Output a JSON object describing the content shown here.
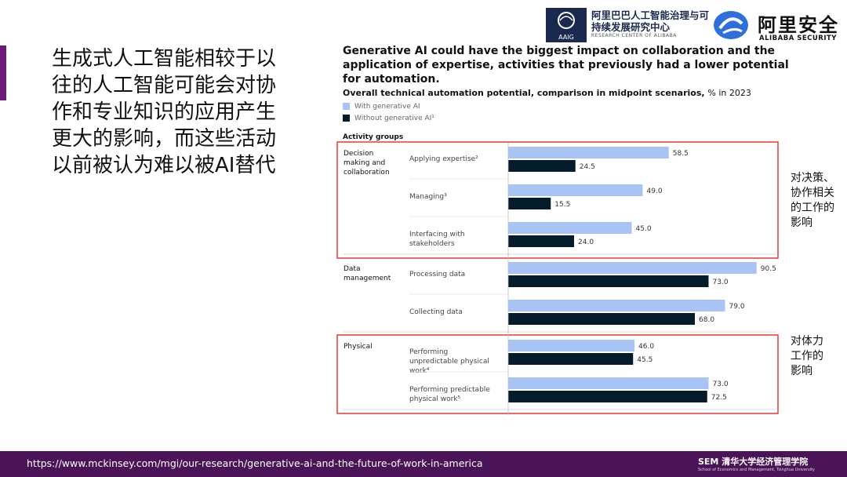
{
  "slide": {
    "left_text": "生成式人工智能相较于以往的人工智能可能会对协作和专业知识的应用产生更大的影响，而这些活动以前被认为难以被AI替代",
    "note_decision": "对决策、协作相关的工作的影响",
    "note_physical": "对体力工作的影响",
    "footer_url": "https://www.mckinsey.com/mgi/our-research/generative-ai-and-the-future-of-work-in-america"
  },
  "logos": {
    "aaig_name": "阿里巴巴人工智能治理与可持续发展研究中心",
    "aaig_en": "RESEARCH CENTER OF ALIBABA",
    "aaig_icon_text": "AAIG",
    "alibaba_security_cn": "阿里安全",
    "alibaba_security_en": "ALIBABA SECURITY",
    "footer_logo_text": "SEM 清华大学经济管理学院",
    "footer_logo_sub": "School of Economics and Management, Tsinghua University"
  },
  "colors": {
    "with_ai": "#a8c4f5",
    "without_ai": "#051c2c",
    "highlight": "#e53935",
    "footer_bg": "#4b1458"
  },
  "chart_data": {
    "type": "bar",
    "orientation": "horizontal",
    "title": "Generative AI could have the biggest impact on collaboration and the application of expertise, activities that previously had a lower potential for automation.",
    "subtitle": "Overall technical automation potential, comparison in midpoint scenarios,",
    "unit": "% in 2023",
    "group_header": "Activity groups",
    "xlim": [
      0,
      100
    ],
    "series": [
      {
        "name": "With generative AI",
        "color": "#a8c4f5"
      },
      {
        "name": "Without generative AI¹",
        "color": "#051c2c"
      }
    ],
    "groups": [
      {
        "name": "Decision making and collaboration",
        "highlighted": true,
        "activities": [
          {
            "name": "Applying expertise²",
            "with": 58.5,
            "without": 24.5
          },
          {
            "name": "Managing³",
            "with": 49.0,
            "without": 15.5
          },
          {
            "name": "Interfacing with stakeholders",
            "with": 45.0,
            "without": 24.0
          }
        ]
      },
      {
        "name": "Data management",
        "highlighted": false,
        "activities": [
          {
            "name": "Processing data",
            "with": 90.5,
            "without": 73.0
          },
          {
            "name": "Collecting data",
            "with": 79.0,
            "without": 68.0
          }
        ]
      },
      {
        "name": "Physical",
        "highlighted": true,
        "activities": [
          {
            "name": "Performing unpredictable physical work⁴",
            "with": 46.0,
            "without": 45.5
          },
          {
            "name": "Performing predictable physical work⁵",
            "with": 73.0,
            "without": 72.5
          }
        ]
      }
    ]
  }
}
